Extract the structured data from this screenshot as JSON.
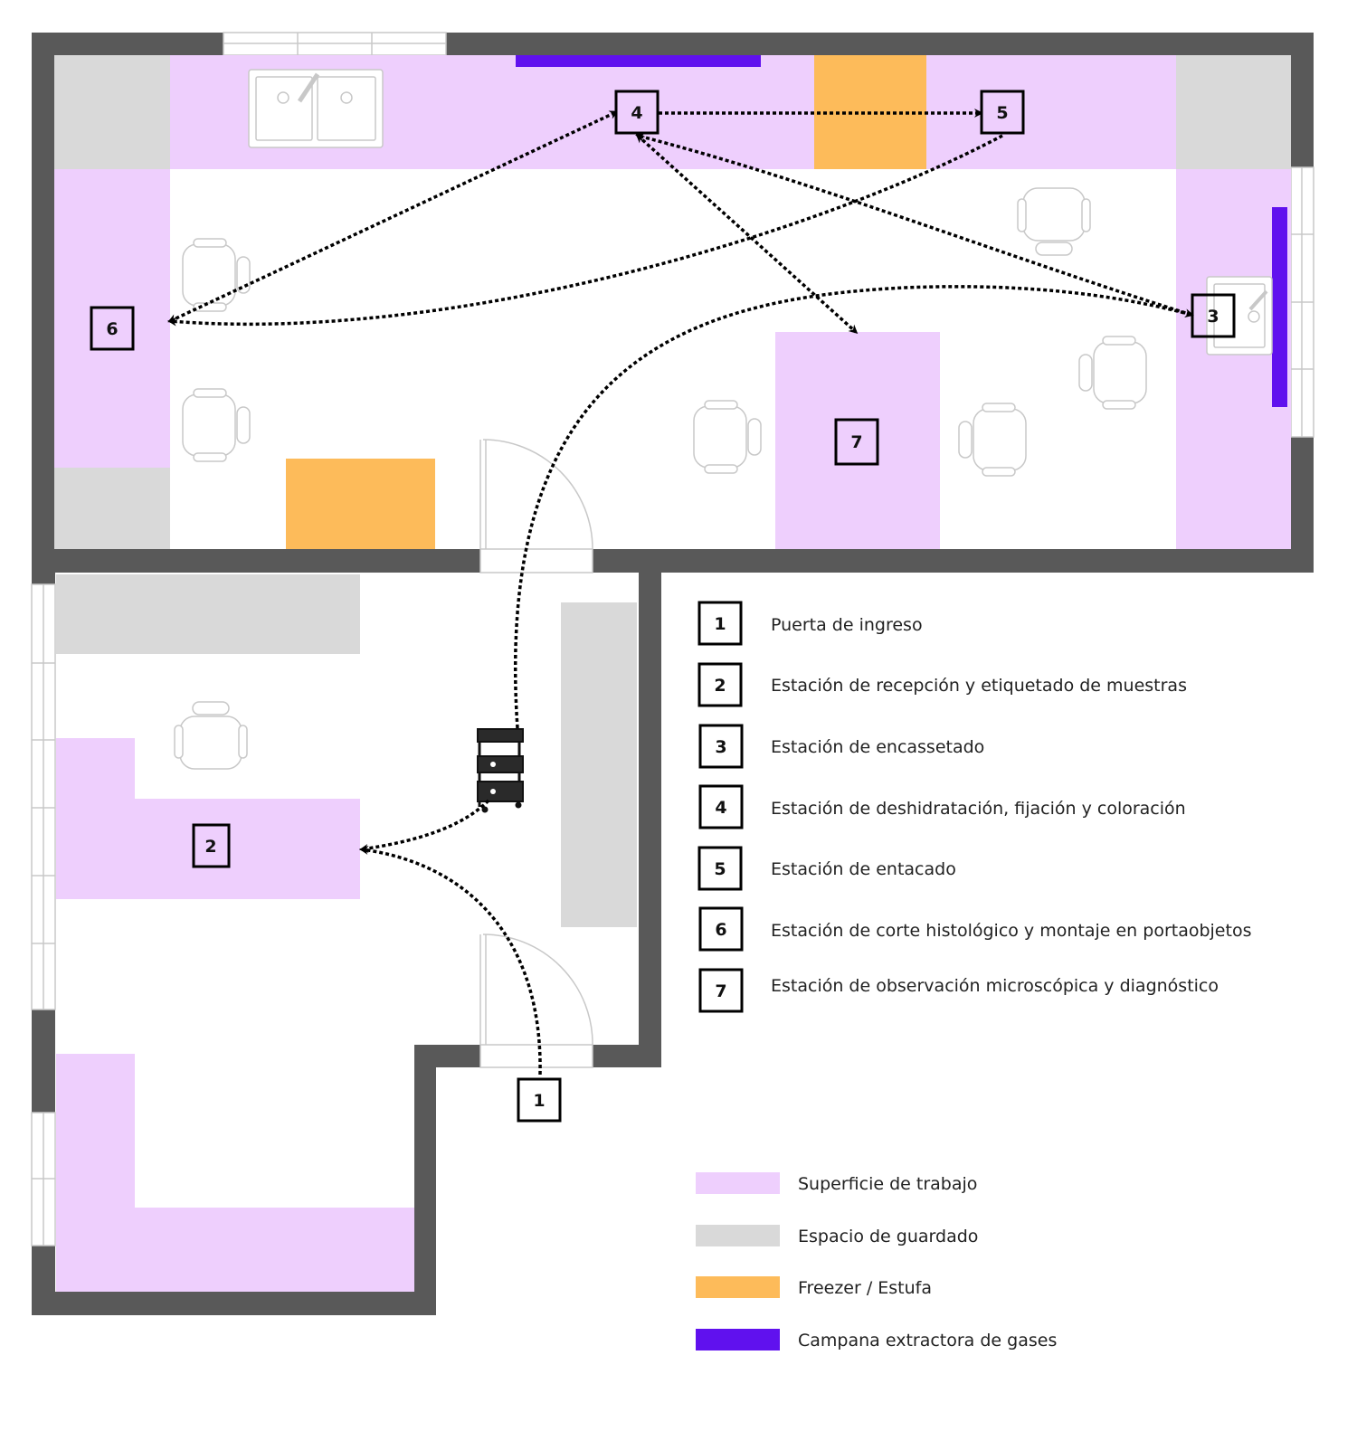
{
  "colors": {
    "work_surface": "#eecffd",
    "storage": "#d9d9d9",
    "freezer": "#fdbb5a",
    "fume_hood": "#6011ee",
    "wall": "#595959"
  },
  "stations": [
    {
      "num": "1",
      "label": "Puerta de ingreso"
    },
    {
      "num": "2",
      "label": "Estación de recepción y etiquetado de muestras"
    },
    {
      "num": "3",
      "label": "Estación de encassetado"
    },
    {
      "num": "4",
      "label": "Estación de deshidratación, fijación y coloración"
    },
    {
      "num": "5",
      "label": "Estación de entacado"
    },
    {
      "num": "6",
      "label": "Estación de corte histológico y montaje en portaobjetos"
    },
    {
      "num": "7",
      "label": "Estación de observación microscópica y diagnóstico"
    }
  ],
  "surface_legend": [
    {
      "label": "Superficie de trabajo",
      "color": "#eecffd"
    },
    {
      "label": "Espacio de guardado",
      "color": "#d9d9d9"
    },
    {
      "label": "Freezer / Estufa",
      "color": "#fdbb5a"
    },
    {
      "label": "Campana extractora de gases",
      "color": "#6011ee"
    }
  ],
  "icons": [
    "sink-icon",
    "chair-icon",
    "cart-icon",
    "door-icon",
    "window-icon"
  ]
}
